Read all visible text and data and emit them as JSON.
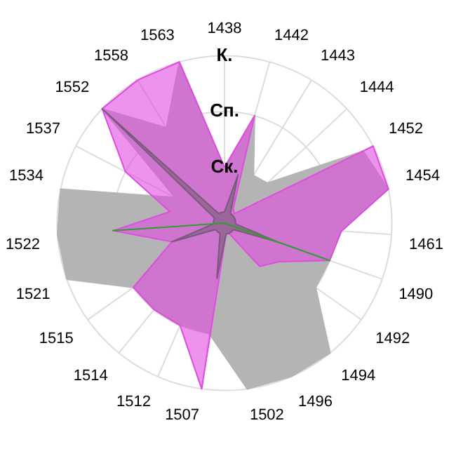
{
  "chart_data": {
    "type": "radar",
    "categories": [
      "1438",
      "1442",
      "1443",
      "1444",
      "1452",
      "1454",
      "1461",
      "1490",
      "1492",
      "1494",
      "1496",
      "1502",
      "1507",
      "1512",
      "1514",
      "1515",
      "1521",
      "1522",
      "1534",
      "1537",
      "1552",
      "1558",
      "1563"
    ],
    "series": [
      {
        "color": "#b4b4b4",
        "values": [
          1,
          2,
          1,
          1.05,
          2.8,
          3,
          2.1,
          2,
          2,
          3,
          3,
          3,
          2,
          2,
          2,
          2,
          3,
          3,
          3,
          1,
          3,
          2,
          3
        ]
      },
      {
        "color": "#2ca02c",
        "values": [
          0,
          0,
          0,
          0,
          0,
          0,
          0,
          2,
          0,
          0,
          0,
          0,
          0,
          0,
          0,
          0,
          0,
          2,
          0,
          0,
          0,
          0,
          0
        ]
      },
      {
        "color": "#e14be1",
        "values": [
          1,
          2,
          0.3,
          0.25,
          3,
          3,
          2.1,
          2,
          1.2,
          1,
          0.2,
          0.2,
          3,
          2,
          2,
          2,
          1,
          2,
          1,
          2,
          3,
          3,
          3
        ]
      },
      {
        "color": "#7a5a7a",
        "values": [
          0.2,
          0.9,
          0.2,
          0.2,
          0.2,
          0.2,
          0.2,
          1,
          0.2,
          0.2,
          0.2,
          0.2,
          1,
          0.2,
          0.2,
          0.2,
          1,
          0.2,
          0.2,
          0.2,
          3,
          0.2,
          0.2
        ]
      }
    ],
    "ylim": [
      0,
      3
    ],
    "yticks": [
      {
        "value": 1,
        "label": "Ск."
      },
      {
        "value": 2,
        "label": "Сп."
      },
      {
        "value": 3,
        "label": "К."
      }
    ],
    "grid": true,
    "legend": false,
    "marker": "none"
  }
}
